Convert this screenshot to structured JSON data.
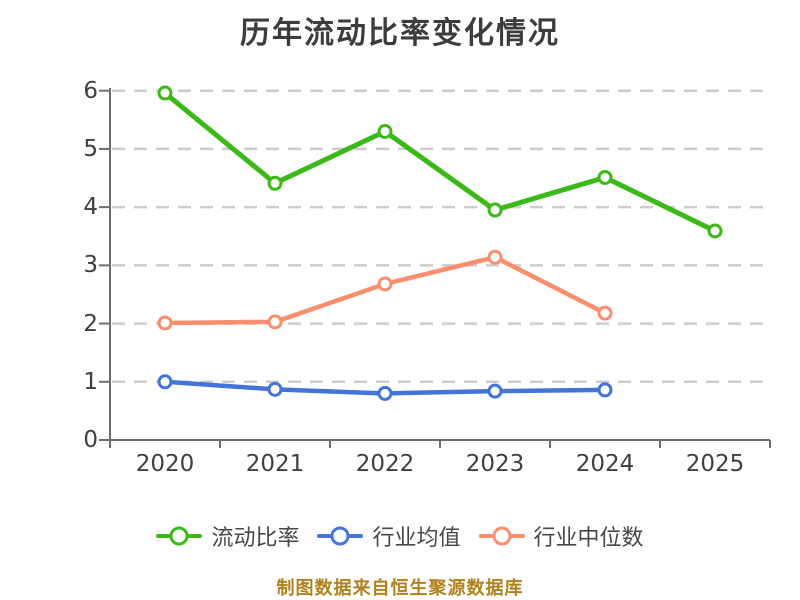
{
  "chart": {
    "title": "历年流动比率变化情况",
    "caption": "制图数据来自恒生聚源数据库"
  },
  "chart_data": {
    "type": "line",
    "title": "历年流动比率变化情况",
    "categories": [
      "2020",
      "2021",
      "2022",
      "2023",
      "2024",
      "2025"
    ],
    "series": [
      {
        "name": "流动比率",
        "color": "#3cb818",
        "line_width": 5,
        "values": [
          5.96,
          4.41,
          5.3,
          3.95,
          4.51,
          3.59
        ]
      },
      {
        "name": "行业均值",
        "color": "#4274d9",
        "line_width": 4.5,
        "values": [
          1.0,
          0.87,
          0.8,
          0.84,
          0.86,
          null
        ]
      },
      {
        "name": "行业中位数",
        "color": "#fa8e6d",
        "line_width": 4.5,
        "values": [
          2.01,
          2.03,
          2.68,
          3.14,
          2.18,
          null
        ]
      }
    ],
    "ylim": [
      0,
      6
    ],
    "yticks": [
      0,
      1,
      2,
      3,
      4,
      5,
      6
    ],
    "grid": "horizontal-dashed",
    "legend_position": "bottom",
    "caption": "制图数据来自恒生聚源数据库",
    "style": {
      "background": "#ffffff",
      "grid_color": "#cdcdcd",
      "axis_color": "#6e6e6e",
      "tick_label_color": "#3f3f3f",
      "title_color": "#3c3c3c",
      "legend_text_color": "#474747",
      "caption_color": "#b0821e",
      "marker_fill": "#ffffff"
    }
  }
}
